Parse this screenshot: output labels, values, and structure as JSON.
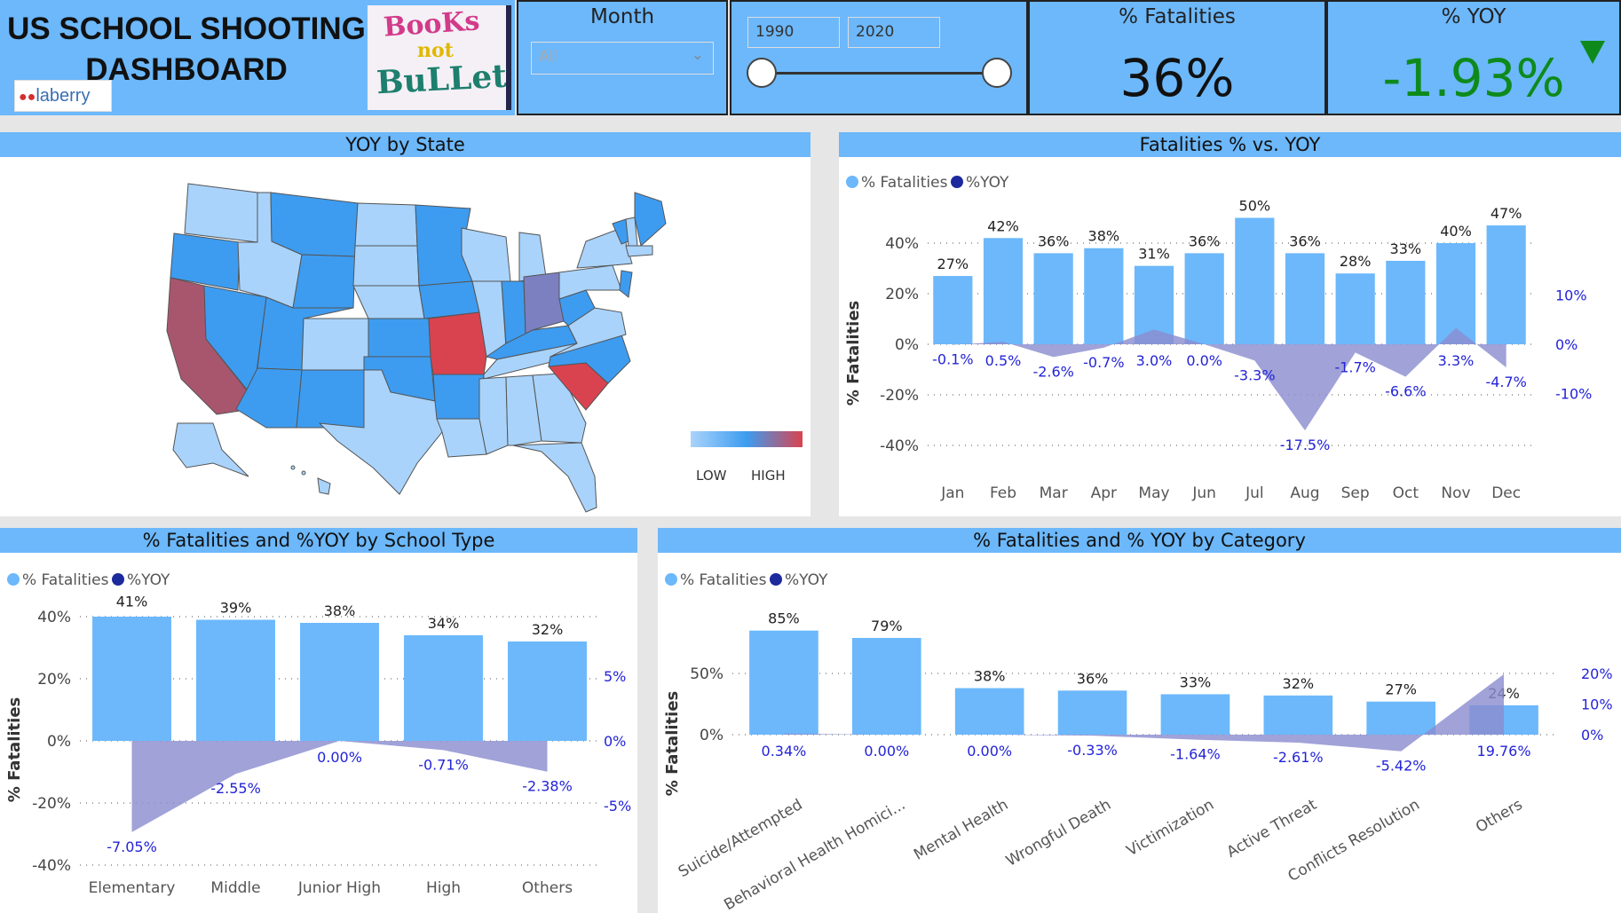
{
  "header": {
    "title_line1": "US SCHOOL SHOOTING",
    "title_line2": "DASHBOARD",
    "logo_text": "laberry",
    "sign_text_1": "BooKs",
    "sign_text_2": "not",
    "sign_text_3": "BuLLets"
  },
  "filters": {
    "month_label": "Month",
    "month_value": "All",
    "year_from": "1990",
    "year_to": "2020"
  },
  "kpi": {
    "fatalities_label": "% Fatalities",
    "fatalities_value": "36%",
    "yoy_label": "% YOY",
    "yoy_value": "-1.93%"
  },
  "map_panel": {
    "title": "YOY by State",
    "legend_low": "LOW",
    "legend_high": "HIGH"
  },
  "colors": {
    "bar": "#6cb8fb",
    "yoy_area": "#8b8ed0",
    "yoy_legend": "#1c2a9e",
    "yoy_label": "#2323d8",
    "state_light": "#a9d3fb",
    "state_mid": "#3d9cf0",
    "state_red": "#d9434f",
    "state_purple": "#7c7fc0"
  },
  "chart_data": [
    {
      "type": "bar",
      "title": "Fatalities % vs. YOY",
      "legend": [
        "% Fatalities",
        "%YOY"
      ],
      "ylabel": "% Fatalities",
      "categories": [
        "Jan",
        "Feb",
        "Mar",
        "Apr",
        "May",
        "Jun",
        "Jul",
        "Aug",
        "Sep",
        "Oct",
        "Nov",
        "Dec"
      ],
      "series": [
        {
          "name": "% Fatalities",
          "values": [
            27,
            42,
            36,
            38,
            31,
            36,
            50,
            36,
            28,
            33,
            40,
            47
          ],
          "labels": [
            "27%",
            "42%",
            "36%",
            "38%",
            "31%",
            "36%",
            "50%",
            "36%",
            "28%",
            "33%",
            "40%",
            "47%"
          ]
        },
        {
          "name": "%YOY",
          "type": "area",
          "values": [
            -0.1,
            0.5,
            -2.6,
            -0.7,
            3.0,
            0.0,
            -3.3,
            -17.5,
            -1.7,
            -6.6,
            3.3,
            -4.7
          ],
          "labels": [
            "-0.1%",
            "0.5%",
            "-2.6%",
            "-0.7%",
            "3.0%",
            "0.0%",
            "-3.3%",
            "-17.5%",
            "-1.7%",
            "-6.6%",
            "3.3%",
            "-4.7%"
          ]
        }
      ],
      "yticks": [
        "40%",
        "20%",
        "0%",
        "-20%",
        "-40%"
      ],
      "y2ticks": [
        "10%",
        "0%",
        "-10%"
      ],
      "ylim": [
        -50,
        50
      ],
      "y2lim": [
        -14.3,
        14.3
      ]
    },
    {
      "type": "bar",
      "title": "% Fatalities and %YOY by School Type",
      "legend": [
        "% Fatalities",
        "%YOY"
      ],
      "ylabel": "% Fatalities",
      "categories": [
        "Elementary",
        "Middle",
        "Junior High",
        "High",
        "Others"
      ],
      "series": [
        {
          "name": "% Fatalities",
          "values": [
            41,
            39,
            38,
            34,
            32
          ],
          "labels": [
            "41%",
            "39%",
            "38%",
            "34%",
            "32%"
          ]
        },
        {
          "name": "%YOY",
          "type": "area",
          "values": [
            -7.05,
            -2.55,
            0.0,
            -0.71,
            -2.38
          ],
          "labels": [
            "-7.05%",
            "-2.55%",
            "0.00%",
            "-0.71%",
            "-2.38%"
          ]
        }
      ],
      "yticks": [
        "40%",
        "20%",
        "0%",
        "-20%",
        "-40%"
      ],
      "y2ticks": [
        "5%",
        "0%",
        "-5%"
      ],
      "ylim": [
        -40,
        40
      ],
      "y2lim": [
        -7,
        7
      ]
    },
    {
      "type": "bar",
      "title": "% Fatalities and % YOY by Category",
      "legend": [
        "% Fatalities",
        "%YOY"
      ],
      "ylabel": "% Fatalities",
      "categories": [
        "Suicide/Attempted",
        "Behavioral Health Homici...",
        "Mental Health",
        "Wrongful Death",
        "Victimization",
        "Active Threat",
        "Conflicts Resolution",
        "Others"
      ],
      "series": [
        {
          "name": "% Fatalities",
          "values": [
            85,
            79,
            38,
            36,
            33,
            32,
            27,
            24
          ],
          "labels": [
            "85%",
            "79%",
            "38%",
            "36%",
            "33%",
            "32%",
            "27%",
            "24%"
          ]
        },
        {
          "name": "%YOY",
          "type": "area",
          "values": [
            0.34,
            0.0,
            0.0,
            -0.33,
            -1.64,
            -2.61,
            -5.42,
            19.76
          ],
          "labels": [
            "0.34%",
            "0.00%",
            "0.00%",
            "-0.33%",
            "-1.64%",
            "-2.61%",
            "-5.42%",
            "19.76%"
          ]
        }
      ],
      "yticks": [
        "50%",
        "0%"
      ],
      "y2ticks": [
        "20%",
        "10%",
        "0%"
      ],
      "ylim": [
        0,
        85
      ],
      "y2lim": [
        0,
        20
      ]
    }
  ]
}
